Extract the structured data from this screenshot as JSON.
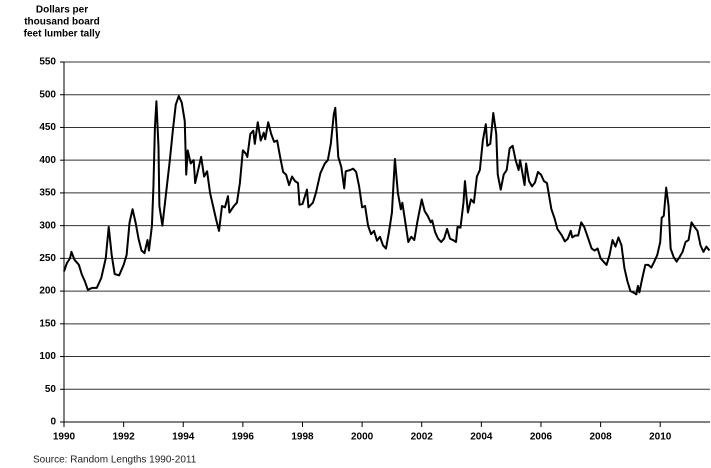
{
  "chart_data": {
    "type": "line",
    "ylabel": [
      "Dollars per",
      "thousand board",
      "feet lumber tally"
    ],
    "source": "Source: Random Lengths 1990-2011",
    "xlim": [
      1990,
      2011.67
    ],
    "xticks": [
      1990,
      1992,
      1994,
      1996,
      1998,
      2000,
      2002,
      2004,
      2006,
      2008,
      2010
    ],
    "ylim": [
      0,
      550
    ],
    "yticks": [
      0,
      50,
      100,
      150,
      200,
      250,
      300,
      350,
      400,
      450,
      500,
      550
    ],
    "grid": true,
    "series": [
      {
        "color": "#000000",
        "x": [
          1990.0,
          1990.1,
          1990.2,
          1990.25,
          1990.35,
          1990.5,
          1990.6,
          1990.7,
          1990.8,
          1990.95,
          1991.1,
          1991.25,
          1991.4,
          1991.5,
          1991.6,
          1991.7,
          1991.85,
          1992.0,
          1992.1,
          1992.2,
          1992.3,
          1992.4,
          1992.5,
          1992.6,
          1992.7,
          1992.8,
          1992.85,
          1992.95,
          1993.0,
          1993.05,
          1993.1,
          1993.17,
          1993.2,
          1993.3,
          1993.4,
          1993.55,
          1993.65,
          1993.75,
          1993.85,
          1993.95,
          1994.05,
          1994.1,
          1994.15,
          1994.25,
          1994.35,
          1994.4,
          1994.5,
          1994.6,
          1994.7,
          1994.8,
          1994.9,
          1995.0,
          1995.1,
          1995.2,
          1995.3,
          1995.4,
          1995.5,
          1995.55,
          1995.7,
          1995.8,
          1995.9,
          1996.0,
          1996.1,
          1996.15,
          1996.25,
          1996.35,
          1996.4,
          1996.5,
          1996.6,
          1996.7,
          1996.75,
          1996.85,
          1996.95,
          1997.05,
          1997.15,
          1997.25,
          1997.35,
          1997.45,
          1997.55,
          1997.65,
          1997.75,
          1997.85,
          1997.9,
          1998.0,
          1998.15,
          1998.2,
          1998.35,
          1998.45,
          1998.6,
          1998.75,
          1998.85,
          1998.95,
          1999.05,
          1999.1,
          1999.2,
          1999.3,
          1999.4,
          1999.45,
          1999.6,
          1999.7,
          1999.8,
          1999.9,
          2000.0,
          2000.1,
          2000.2,
          2000.3,
          2000.4,
          2000.5,
          2000.6,
          2000.7,
          2000.8,
          2000.9,
          2001.0,
          2001.1,
          2001.2,
          2001.3,
          2001.35,
          2001.45,
          2001.55,
          2001.65,
          2001.75,
          2001.85,
          2002.0,
          2002.1,
          2002.2,
          2002.3,
          2002.35,
          2002.45,
          2002.55,
          2002.65,
          2002.75,
          2002.85,
          2002.95,
          2003.05,
          2003.15,
          2003.2,
          2003.3,
          2003.4,
          2003.45,
          2003.55,
          2003.65,
          2003.75,
          2003.85,
          2003.95,
          2004.05,
          2004.15,
          2004.2,
          2004.3,
          2004.4,
          2004.5,
          2004.55,
          2004.65,
          2004.75,
          2004.85,
          2004.95,
          2005.05,
          2005.15,
          2005.25,
          2005.3,
          2005.45,
          2005.5,
          2005.6,
          2005.7,
          2005.8,
          2005.9,
          2006.0,
          2006.1,
          2006.2,
          2006.35,
          2006.45,
          2006.55,
          2006.7,
          2006.8,
          2006.9,
          2007.0,
          2007.05,
          2007.15,
          2007.25,
          2007.35,
          2007.45,
          2007.55,
          2007.7,
          2007.8,
          2007.9,
          2008.0,
          2008.1,
          2008.2,
          2008.3,
          2008.4,
          2008.5,
          2008.6,
          2008.7,
          2008.8,
          2008.9,
          2009.0,
          2009.1,
          2009.2,
          2009.25,
          2009.3,
          2009.4,
          2009.5,
          2009.6,
          2009.7,
          2009.8,
          2009.9,
          2010.0,
          2010.05,
          2010.12,
          2010.2,
          2010.28,
          2010.35,
          2010.45,
          2010.55,
          2010.65,
          2010.75,
          2010.85,
          2010.95,
          2011.05,
          2011.15,
          2011.25,
          2011.35,
          2011.45,
          2011.55,
          2011.65
        ],
        "values": [
          230,
          243,
          250,
          260,
          248,
          240,
          225,
          215,
          202,
          205,
          205,
          220,
          250,
          298,
          255,
          226,
          224,
          240,
          255,
          305,
          325,
          305,
          280,
          262,
          258,
          278,
          262,
          300,
          360,
          450,
          490,
          420,
          330,
          300,
          340,
          400,
          445,
          485,
          498,
          488,
          460,
          378,
          415,
          395,
          400,
          365,
          385,
          405,
          375,
          383,
          350,
          330,
          310,
          292,
          330,
          328,
          345,
          320,
          330,
          335,
          365,
          415,
          410,
          405,
          440,
          445,
          425,
          458,
          430,
          442,
          432,
          458,
          440,
          428,
          430,
          405,
          382,
          378,
          362,
          375,
          368,
          365,
          332,
          333,
          355,
          328,
          335,
          350,
          380,
          395,
          400,
          425,
          470,
          480,
          405,
          390,
          357,
          383,
          385,
          387,
          382,
          360,
          328,
          330,
          300,
          287,
          292,
          277,
          283,
          270,
          265,
          290,
          320,
          402,
          350,
          325,
          335,
          305,
          275,
          283,
          278,
          305,
          340,
          322,
          315,
          305,
          308,
          290,
          280,
          275,
          280,
          295,
          280,
          278,
          275,
          298,
          297,
          335,
          368,
          320,
          340,
          335,
          375,
          385,
          430,
          455,
          422,
          425,
          472,
          440,
          378,
          355,
          378,
          385,
          418,
          422,
          400,
          385,
          400,
          362,
          395,
          368,
          360,
          366,
          382,
          378,
          368,
          365,
          325,
          312,
          295,
          285,
          276,
          280,
          292,
          282,
          285,
          285,
          305,
          298,
          285,
          265,
          262,
          265,
          250,
          245,
          240,
          255,
          278,
          268,
          282,
          270,
          235,
          215,
          200,
          198,
          195,
          208,
          198,
          220,
          240,
          240,
          236,
          245,
          255,
          275,
          312,
          315,
          358,
          330,
          265,
          252,
          245,
          252,
          260,
          275,
          278,
          305,
          298,
          292,
          270,
          260,
          268,
          262
        ]
      }
    ]
  }
}
